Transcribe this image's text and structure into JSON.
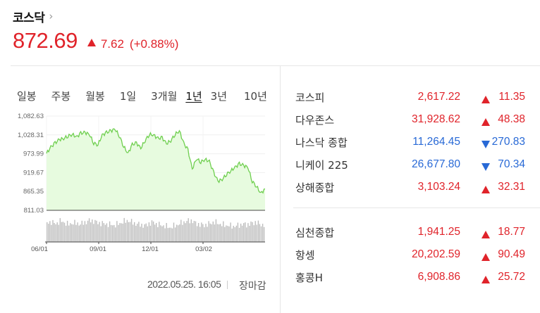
{
  "header": {
    "title": "코스닥",
    "chevron": "›",
    "price": "872.69",
    "change": "7.62",
    "change_pct": "(+0.88%)",
    "direction": "up",
    "color_up": "#e0232a",
    "color_down": "#2869d6"
  },
  "tabs": [
    {
      "label": "일봉",
      "active": false
    },
    {
      "label": "주봉",
      "active": false
    },
    {
      "label": "월봉",
      "active": false
    },
    {
      "label": "1일",
      "active": false
    },
    {
      "label": "3개월",
      "active": false
    },
    {
      "label": "1년",
      "active": true
    },
    {
      "label": "3년",
      "active": false
    },
    {
      "label": "10년",
      "active": false
    }
  ],
  "chart_data": {
    "type": "area",
    "y_ticks": [
      "1,082.63",
      "1,028.31",
      "973.99",
      "919.67",
      "865.35",
      "811.03"
    ],
    "ylim": [
      811.03,
      1082.63
    ],
    "x_ticks": [
      "06/01",
      "09/01",
      "12/01",
      "03/02"
    ],
    "line_color": "#6fcf4f",
    "fill_color": "#e7fbdf",
    "x": [
      "06/01",
      "06/08",
      "06/15",
      "06/22",
      "06/29",
      "07/06",
      "07/13",
      "07/20",
      "07/27",
      "08/03",
      "08/10",
      "08/17",
      "08/24",
      "08/31",
      "09/07",
      "09/14",
      "09/21",
      "09/28",
      "10/05",
      "10/12",
      "10/19",
      "10/26",
      "11/02",
      "11/09",
      "11/16",
      "11/23",
      "11/30",
      "12/07",
      "12/14",
      "12/21",
      "12/28",
      "01/04",
      "01/11",
      "01/18",
      "01/25",
      "02/01",
      "02/08",
      "02/15",
      "02/22",
      "03/01",
      "03/08",
      "03/15",
      "03/22",
      "03/29",
      "04/05",
      "04/12",
      "04/19",
      "04/26",
      "05/03",
      "05/10",
      "05/17",
      "05/25"
    ],
    "values": [
      975,
      993,
      1005,
      1015,
      1018,
      1025,
      1030,
      1022,
      1033,
      1035,
      1030,
      1005,
      1000,
      1028,
      1035,
      1040,
      1045,
      1025,
      995,
      975,
      1000,
      1005,
      990,
      1012,
      1030,
      1028,
      1018,
      1020,
      1003,
      1012,
      1030,
      1040,
      1005,
      985,
      930,
      960,
      950,
      958,
      952,
      920,
      895,
      900,
      915,
      925,
      935,
      945,
      940,
      935,
      895,
      880,
      860,
      872.69
    ],
    "volume": [
      62,
      68,
      60,
      70,
      66,
      58,
      64,
      62,
      60,
      66,
      72,
      70,
      64,
      62,
      60,
      58,
      56,
      62,
      68,
      72,
      66,
      60,
      58,
      54,
      62,
      66,
      58,
      56,
      52,
      48,
      54,
      60,
      66,
      70,
      72,
      62,
      58,
      56,
      60,
      66,
      64,
      58,
      56,
      54,
      52,
      56,
      60,
      58,
      62,
      66,
      60,
      56
    ]
  },
  "timestamp": "2022.05.25. 16:05",
  "market_status": "장마감",
  "indices_group1": [
    {
      "name": "코스피",
      "value": "2,617.22",
      "change": "11.35",
      "dir": "up"
    },
    {
      "name": "다우존스",
      "value": "31,928.62",
      "change": "48.38",
      "dir": "up"
    },
    {
      "name": "나스닥 종합",
      "value": "11,264.45",
      "change": "270.83",
      "dir": "down"
    },
    {
      "name": "니케이 225",
      "value": "26,677.80",
      "change": "70.34",
      "dir": "down"
    },
    {
      "name": "상해종합",
      "value": "3,103.24",
      "change": "32.31",
      "dir": "up"
    }
  ],
  "indices_group2": [
    {
      "name": "심천종합",
      "value": "1,941.25",
      "change": "18.77",
      "dir": "up"
    },
    {
      "name": "항셍",
      "value": "20,202.59",
      "change": "90.49",
      "dir": "up"
    },
    {
      "name": "홍콩H",
      "value": "6,908.86",
      "change": "25.72",
      "dir": "up"
    }
  ]
}
